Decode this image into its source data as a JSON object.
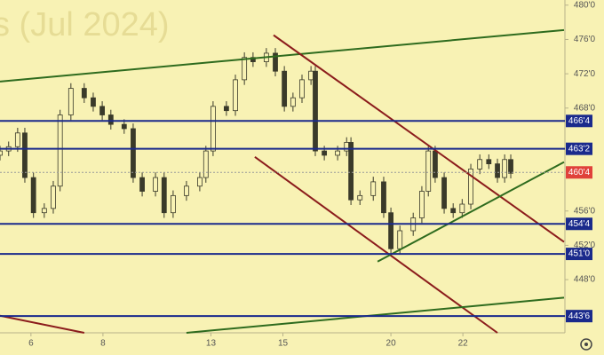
{
  "chart_data": {
    "type": "candlestick",
    "watermark": "s (Jul 2024)",
    "background": "#f8f2b4",
    "candle_color": "#3a3a2a",
    "x": [
      -0.86,
      -0.62,
      -0.37,
      -0.17,
      0.07,
      0.37,
      0.62,
      0.81,
      1.11,
      1.48,
      1.73,
      1.98,
      2.22,
      2.59,
      2.84,
      3.09,
      3.46,
      3.7,
      3.95,
      4.32,
      4.69,
      4.86,
      5.06,
      5.43,
      5.68,
      5.93,
      6.17,
      6.54,
      6.79,
      7.04,
      7.28,
      7.53,
      7.78,
      7.9,
      8.15,
      8.52,
      8.77,
      8.89,
      9.14,
      9.51,
      9.8,
      10.0,
      10.25,
      10.62,
      10.86,
      11.04,
      11.23,
      11.48,
      11.73,
      11.98,
      12.22,
      12.47,
      12.72,
      12.96,
      13.16,
      13.33
    ],
    "open": [
      462.5,
      463.0,
      463.5,
      465.1,
      459.9,
      455.8,
      456.3,
      458.9,
      467.2,
      470.3,
      469.2,
      468.2,
      467.2,
      466.1,
      465.6,
      459.9,
      458.3,
      459.9,
      455.8,
      457.8,
      458.9,
      459.9,
      463.0,
      468.2,
      467.7,
      471.3,
      473.9,
      473.4,
      474.4,
      472.3,
      468.2,
      469.2,
      471.3,
      472.3,
      463.0,
      462.5,
      463.0,
      464.0,
      457.3,
      457.8,
      459.4,
      455.8,
      451.6,
      453.7,
      455.2,
      458.3,
      463.0,
      459.9,
      456.3,
      455.8,
      456.8,
      460.9,
      462.0,
      461.5,
      459.9,
      462.0
    ],
    "high": [
      463.6,
      464.1,
      465.7,
      465.7,
      460.5,
      456.9,
      459.5,
      467.8,
      470.9,
      470.9,
      469.8,
      468.8,
      467.8,
      466.7,
      466.2,
      460.5,
      460.5,
      460.5,
      458.4,
      459.5,
      460.5,
      463.6,
      468.8,
      468.8,
      471.9,
      474.5,
      474.5,
      475.0,
      475.0,
      472.9,
      469.8,
      471.9,
      472.9,
      472.9,
      463.6,
      463.6,
      464.6,
      464.6,
      458.4,
      460.0,
      460.0,
      456.4,
      454.3,
      455.8,
      458.9,
      463.6,
      463.6,
      460.5,
      456.9,
      457.4,
      461.5,
      462.6,
      462.6,
      462.1,
      462.6,
      462.6
    ],
    "low": [
      461.9,
      462.4,
      462.9,
      459.3,
      455.2,
      455.2,
      455.7,
      458.3,
      466.6,
      468.6,
      467.6,
      466.6,
      465.5,
      465.0,
      459.3,
      457.7,
      457.7,
      455.2,
      455.2,
      457.2,
      458.3,
      459.3,
      462.4,
      467.1,
      467.1,
      470.7,
      472.8,
      472.8,
      471.7,
      467.6,
      467.6,
      468.6,
      470.7,
      462.4,
      461.9,
      461.9,
      462.4,
      456.7,
      456.7,
      457.2,
      455.2,
      451.0,
      451.0,
      453.1,
      454.6,
      457.7,
      459.3,
      455.7,
      455.2,
      455.2,
      456.2,
      460.3,
      460.9,
      459.3,
      459.3,
      459.8
    ],
    "close": [
      463.0,
      463.5,
      465.1,
      459.9,
      455.8,
      456.3,
      458.9,
      467.2,
      470.3,
      469.2,
      468.2,
      467.2,
      466.1,
      465.6,
      459.9,
      458.3,
      459.9,
      455.8,
      457.8,
      458.9,
      459.9,
      463.0,
      468.2,
      467.7,
      471.3,
      473.9,
      473.4,
      474.4,
      472.3,
      468.2,
      469.2,
      471.3,
      472.3,
      463.0,
      462.5,
      463.0,
      464.0,
      457.3,
      457.8,
      459.4,
      455.8,
      451.6,
      453.7,
      455.2,
      458.3,
      463.0,
      459.9,
      456.3,
      455.8,
      456.8,
      460.9,
      462.0,
      461.5,
      459.9,
      462.0,
      460.4
    ],
    "xlim": [
      -0.86,
      14.81
    ],
    "ylim": [
      441.8,
      480.6
    ],
    "xticks": [
      {
        "value": 0,
        "label": "6"
      },
      {
        "value": 2,
        "label": "8"
      },
      {
        "value": 5,
        "label": "13"
      },
      {
        "value": 7,
        "label": "15"
      },
      {
        "value": 10,
        "label": "20"
      },
      {
        "value": 12,
        "label": "22"
      }
    ],
    "yticks": [
      {
        "value": 480,
        "label": "480'0"
      },
      {
        "value": 476,
        "label": "476'0"
      },
      {
        "value": 472,
        "label": "472'0"
      },
      {
        "value": 468,
        "label": "468'0"
      },
      {
        "value": 456,
        "label": "456'0"
      },
      {
        "value": 452,
        "label": "452'0"
      },
      {
        "value": 448,
        "label": "448'0"
      }
    ],
    "levels": [
      {
        "value": 466.5,
        "label": "466'4"
      },
      {
        "value": 463.25,
        "label": "463'2"
      },
      {
        "value": 454.5,
        "label": "454'4"
      },
      {
        "value": 451,
        "label": "451'0"
      },
      {
        "value": 443.75,
        "label": "443'6"
      }
    ],
    "level_color": "#1a2a8c",
    "last_price": {
      "value": 460.5,
      "label": "460'4",
      "color": "#e0413a"
    },
    "trendlines": [
      {
        "color": "#2e6b1e",
        "x": [
          -0.86,
          14.81
        ],
        "y": [
          471.1,
          477.1
        ]
      },
      {
        "color": "#8b1c1c",
        "x": [
          6.74,
          14.81
        ],
        "y": [
          476.5,
          452.4
        ]
      },
      {
        "color": "#8b1c1c",
        "x": [
          6.22,
          12.96
        ],
        "y": [
          462.3,
          441.8
        ]
      },
      {
        "color": "#2e6b1e",
        "x": [
          9.63,
          14.81
        ],
        "y": [
          450.1,
          461.7
        ]
      },
      {
        "color": "#2e6b1e",
        "x": [
          4.32,
          14.81
        ],
        "y": [
          441.8,
          445.9
        ]
      },
      {
        "color": "#8b1c1c",
        "x": [
          -0.86,
          1.48
        ],
        "y": [
          443.8,
          441.8
        ]
      }
    ]
  }
}
